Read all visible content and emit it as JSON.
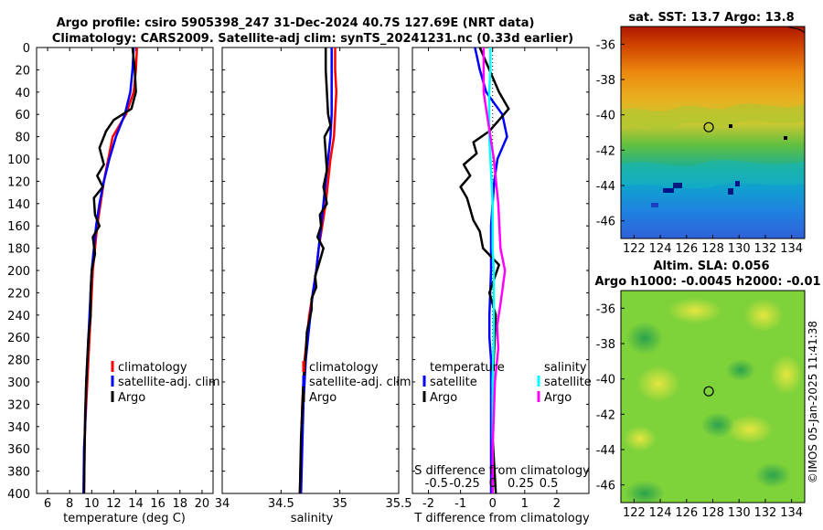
{
  "header": {
    "title_line1": "Argo profile: csiro 5905398_247 31-Dec-2024 40.7S 127.69E (NRT data)",
    "title_line2": "Climatology: CARS2009. Satellite-adj clim: synTS_20241231.nc (0.33d earlier)"
  },
  "credit": "©IMOS 05-Jan-2025 11:41:38",
  "depth_ticks": [
    0,
    20,
    40,
    60,
    80,
    100,
    120,
    140,
    160,
    180,
    200,
    220,
    240,
    260,
    280,
    300,
    320,
    340,
    360,
    380,
    400
  ],
  "colors": {
    "climatology": "#ff0000",
    "satellite": "#0000ff",
    "argo": "#000000",
    "sal_satellite": "#00ffff",
    "sal_argo": "#ff00ff",
    "argo_dot": "#ff00ff"
  },
  "chart_data": [
    {
      "type": "line",
      "panel": "temperature",
      "xlabel": "temperature (deg C)",
      "ylabel": "depth",
      "xlim": [
        5,
        21
      ],
      "ylim": [
        400,
        0
      ],
      "xticks": [
        6,
        8,
        10,
        12,
        14,
        16,
        18,
        20
      ],
      "legend": [
        "climatology",
        "satellite-adj. clim",
        "Argo"
      ],
      "series": [
        {
          "name": "climatology",
          "color": "#ff0000",
          "x": [
            14.1,
            14.0,
            13.8,
            13.1,
            11.9,
            11.5,
            11.1,
            10.8,
            10.5,
            10.3,
            10.1,
            9.9,
            9.8,
            9.7,
            9.6,
            9.5,
            9.4,
            9.35,
            9.3
          ],
          "depth": [
            0,
            20,
            40,
            60,
            80,
            100,
            120,
            140,
            160,
            180,
            200,
            240,
            260,
            280,
            300,
            320,
            340,
            360,
            400
          ]
        },
        {
          "name": "satellite-adj. clim",
          "color": "#0000ff",
          "x": [
            13.8,
            13.7,
            13.5,
            13.0,
            12.2,
            11.6,
            11.1,
            10.7,
            10.4,
            10.2,
            10.0,
            9.8,
            9.7,
            9.6,
            9.5,
            9.45,
            9.4,
            9.3,
            9.25
          ],
          "depth": [
            0,
            20,
            40,
            60,
            80,
            100,
            120,
            140,
            160,
            180,
            200,
            240,
            260,
            280,
            300,
            320,
            340,
            360,
            400
          ]
        },
        {
          "name": "Argo",
          "color": "#000000",
          "x": [
            13.7,
            13.9,
            14.0,
            13.6,
            12.0,
            11.3,
            10.7,
            11.1,
            10.5,
            11.0,
            10.2,
            10.3,
            10.7,
            10.1,
            10.3,
            10.0,
            9.9,
            9.9,
            9.7,
            9.6,
            9.5,
            9.4,
            9.35,
            9.3
          ],
          "depth": [
            0,
            20,
            40,
            55,
            65,
            75,
            90,
            105,
            115,
            125,
            135,
            150,
            160,
            170,
            185,
            200,
            220,
            240,
            260,
            280,
            300,
            330,
            360,
            400
          ]
        }
      ]
    },
    {
      "type": "line",
      "panel": "salinity",
      "xlabel": "salinity",
      "xlim": [
        34,
        35.5
      ],
      "ylim": [
        400,
        0
      ],
      "xticks": [
        34,
        34.5,
        35,
        35.5
      ],
      "legend": [
        "climatology",
        "satellite-adj. clim",
        "Argo"
      ],
      "series": [
        {
          "name": "climatology",
          "color": "#ff0000",
          "x": [
            34.96,
            34.96,
            34.97,
            34.96,
            34.95,
            34.92,
            34.9,
            34.88,
            34.85,
            34.82,
            34.8,
            34.77,
            34.74,
            34.72,
            34.7,
            34.69,
            34.68,
            34.67,
            34.66
          ],
          "depth": [
            0,
            20,
            40,
            60,
            80,
            100,
            120,
            140,
            160,
            180,
            200,
            220,
            240,
            260,
            280,
            300,
            320,
            360,
            400
          ]
        },
        {
          "name": "satellite-adj. clim",
          "color": "#0000ff",
          "x": [
            34.93,
            34.93,
            34.93,
            34.93,
            34.92,
            34.9,
            34.88,
            34.86,
            34.84,
            34.82,
            34.8,
            34.77,
            34.75,
            34.73,
            34.71,
            34.7,
            34.69,
            34.68,
            34.67
          ],
          "depth": [
            0,
            20,
            40,
            60,
            80,
            100,
            120,
            140,
            160,
            180,
            200,
            220,
            240,
            260,
            280,
            300,
            320,
            360,
            400
          ]
        },
        {
          "name": "Argo",
          "color": "#000000",
          "x": [
            34.88,
            34.88,
            34.89,
            34.9,
            34.92,
            34.87,
            34.88,
            34.89,
            34.86,
            34.89,
            34.83,
            34.84,
            34.81,
            34.86,
            34.82,
            34.79,
            34.8,
            34.76,
            34.76,
            34.72,
            34.71,
            34.69,
            34.67,
            34.66
          ],
          "depth": [
            0,
            20,
            40,
            60,
            70,
            80,
            95,
            110,
            125,
            140,
            150,
            160,
            170,
            180,
            195,
            205,
            215,
            225,
            235,
            255,
            275,
            300,
            350,
            400
          ]
        }
      ]
    },
    {
      "type": "line",
      "panel": "differences",
      "xlabel": "T difference from climatology",
      "xlim": [
        -2.5,
        3
      ],
      "ylim": [
        400,
        0
      ],
      "xticks": [
        -2,
        -1,
        0,
        1,
        2
      ],
      "secondary_axis": {
        "label": "S difference from climatology",
        "ticks": [
          "-0.5",
          "-0.25",
          "0",
          "0.25",
          "0.5"
        ]
      },
      "legend_groups": [
        {
          "title": "temperature",
          "entries": [
            "satellite",
            "Argo"
          ]
        },
        {
          "title": "salinity",
          "entries": [
            "satellite",
            "Argo"
          ]
        }
      ],
      "series": [
        {
          "name": "temperature satellite",
          "color": "#0000ff",
          "x": [
            -0.55,
            -0.4,
            -0.2,
            0.3,
            0.45,
            0.15,
            0.05,
            0.0,
            -0.05,
            -0.05,
            -0.05,
            -0.1,
            -0.1,
            -0.05,
            -0.05,
            -0.05,
            -0.05,
            -0.05
          ],
          "depth": [
            0,
            20,
            40,
            60,
            80,
            100,
            120,
            140,
            160,
            180,
            200,
            240,
            260,
            280,
            300,
            320,
            360,
            400
          ]
        },
        {
          "name": "temperature Argo",
          "color": "#000000",
          "x": [
            -0.4,
            -0.1,
            0.2,
            0.5,
            0.2,
            -0.1,
            -0.6,
            -0.5,
            -0.9,
            -0.7,
            -1.0,
            -0.8,
            -0.7,
            -0.6,
            -0.4,
            -0.3,
            0.2,
            -0.1,
            0.1,
            0.0,
            0.0,
            0.1
          ],
          "depth": [
            0,
            20,
            40,
            55,
            65,
            75,
            85,
            95,
            105,
            115,
            125,
            135,
            145,
            155,
            165,
            180,
            195,
            220,
            240,
            300,
            350,
            400
          ]
        },
        {
          "name": "salinity satellite",
          "color": "#00ffff",
          "x": [
            -0.02,
            -0.02,
            -0.03,
            -0.03,
            -0.03,
            -0.02,
            -0.01,
            0.0,
            0.0,
            0.0,
            0.01,
            0.01,
            0.01,
            0.0,
            0.0,
            0.0,
            0.0
          ],
          "depth": [
            0,
            20,
            40,
            60,
            80,
            100,
            120,
            140,
            160,
            180,
            200,
            240,
            260,
            300,
            320,
            360,
            400
          ]
        },
        {
          "name": "salinity Argo",
          "color": "#ff00ff",
          "x": [
            -0.08,
            -0.08,
            -0.08,
            -0.05,
            -0.02,
            0.01,
            0.03,
            0.05,
            0.06,
            0.07,
            0.11,
            0.09,
            0.07,
            0.04,
            0.05,
            0.02,
            0.01,
            0.0,
            0.0
          ],
          "depth": [
            0,
            20,
            40,
            60,
            80,
            100,
            120,
            140,
            160,
            180,
            200,
            215,
            230,
            250,
            270,
            300,
            330,
            360,
            400
          ]
        }
      ]
    },
    {
      "type": "heatmap",
      "panel": "sst_map",
      "title": "sat. SST: 13.7 Argo: 13.8",
      "xlim": [
        121,
        135
      ],
      "ylim": [
        -47,
        -35
      ],
      "xticks": [
        122,
        124,
        126,
        128,
        130,
        132,
        134
      ],
      "yticks": [
        -36,
        -38,
        -40,
        -42,
        -44,
        -46
      ],
      "marker": {
        "lon": 127.69,
        "lat": -40.7
      }
    },
    {
      "type": "heatmap",
      "panel": "sla_map",
      "title": "Altim. SLA: 0.056",
      "subtitle": "Argo h1000: -0.0045 h2000: -0.01",
      "xlim": [
        121,
        135
      ],
      "ylim": [
        -47,
        -35
      ],
      "xticks": [
        122,
        124,
        126,
        128,
        130,
        132,
        134
      ],
      "yticks": [
        -36,
        -38,
        -40,
        -42,
        -44,
        -46
      ],
      "marker": {
        "lon": 127.69,
        "lat": -40.7
      }
    }
  ]
}
